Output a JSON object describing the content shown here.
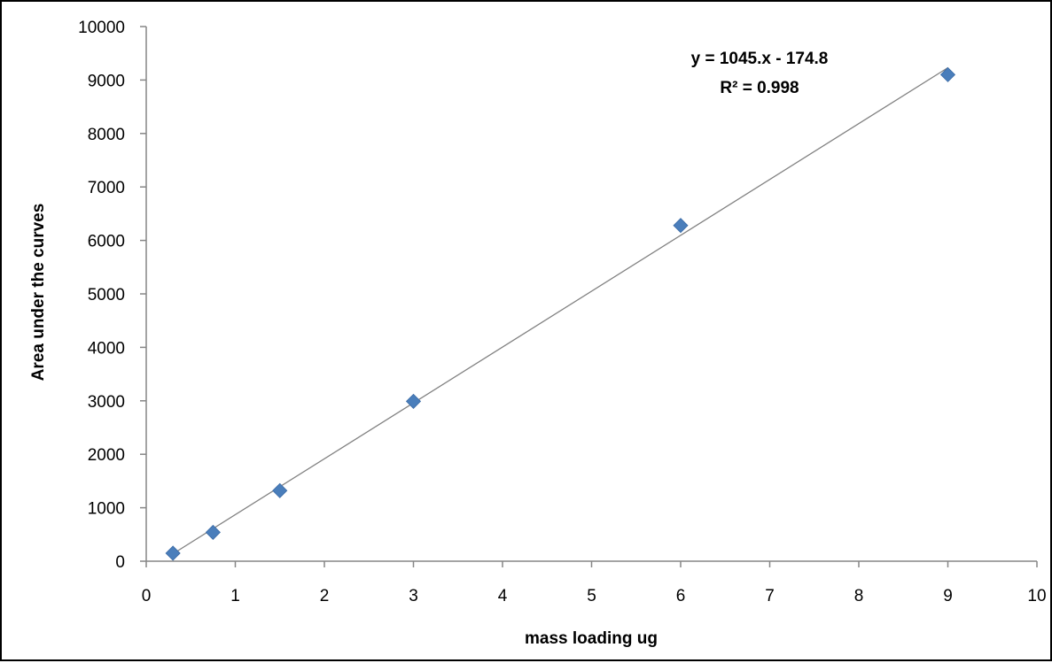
{
  "chart_data": {
    "type": "scatter",
    "title": "",
    "xlabel": "mass loading  ug",
    "ylabel": "Area under the curves",
    "xlim": [
      0,
      10
    ],
    "ylim": [
      0,
      10000
    ],
    "x_ticks": [
      0,
      1,
      2,
      3,
      4,
      5,
      6,
      7,
      8,
      9,
      10
    ],
    "y_ticks": [
      0,
      1000,
      2000,
      3000,
      4000,
      5000,
      6000,
      7000,
      8000,
      9000,
      10000
    ],
    "grid": false,
    "legend": "none",
    "series": [
      {
        "x": [
          0.3,
          0.75,
          1.5,
          3,
          6,
          9
        ],
        "y": [
          150,
          540,
          1320,
          2990,
          6280,
          9100
        ],
        "marker": "diamond",
        "color": "#4a7ebb"
      }
    ],
    "trendline": {
      "type": "linear",
      "slope": 1045,
      "intercept": -174.8,
      "color": "#808080",
      "x_range": [
        0.3,
        9
      ]
    },
    "annotations": {
      "equation": "y = 1045.x - 174.8",
      "r_squared": "R² = 0.998"
    }
  }
}
